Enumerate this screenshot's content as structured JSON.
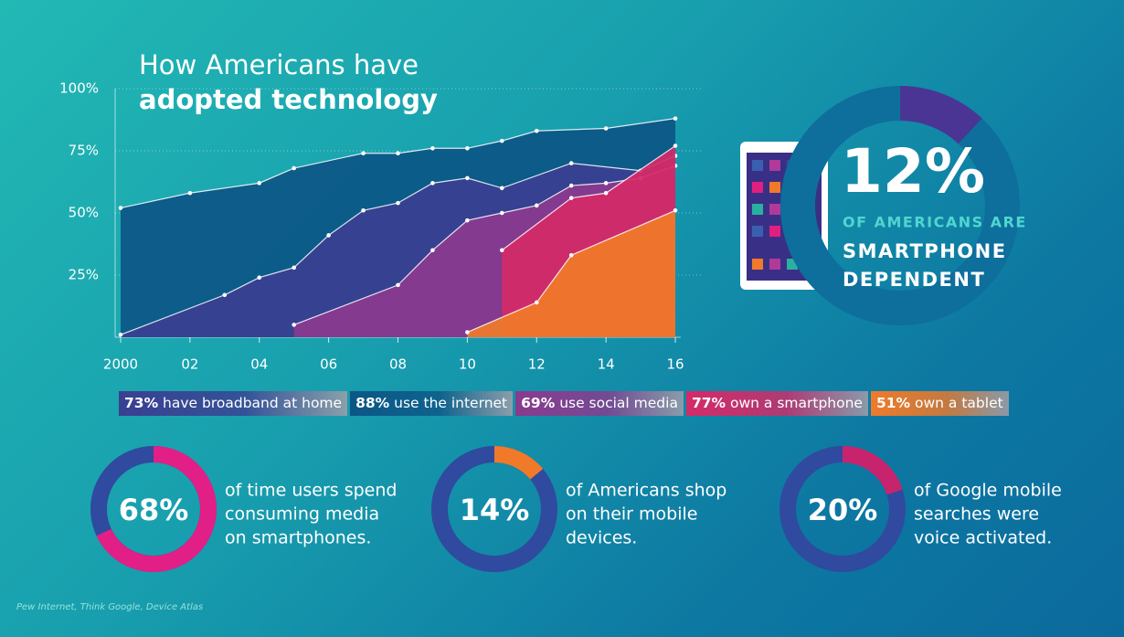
{
  "chart_data": [
    {
      "type": "area",
      "title_lines": [
        "How Americans have",
        "adopted technology"
      ],
      "xlim": [
        2000,
        2016
      ],
      "xticks": [
        2000,
        {
          "value": 2002,
          "label": "02"
        },
        {
          "value": 2004,
          "label": "04"
        },
        {
          "value": 2006,
          "label": "06"
        },
        {
          "value": 2008,
          "label": "08"
        },
        {
          "value": 2010,
          "label": "10"
        },
        {
          "value": 2012,
          "label": "12"
        },
        {
          "value": 2014,
          "label": "14"
        },
        {
          "value": 2016,
          "label": "16"
        }
      ],
      "ylim": [
        0,
        100
      ],
      "yticks": [
        {
          "value": 25,
          "label": "25%"
        },
        {
          "value": 50,
          "label": "50%"
        },
        {
          "value": 75,
          "label": "75%"
        },
        {
          "value": 100,
          "label": "100%"
        }
      ],
      "grid": true,
      "series": [
        {
          "name": "use the internet",
          "legend_value": 88,
          "legend_value_label": "88%",
          "color": "#0c5686",
          "x": [
            2000,
            2002,
            2004,
            2005,
            2007,
            2008,
            2009,
            2010,
            2011,
            2012,
            2014,
            2016
          ],
          "values": [
            52,
            58,
            62,
            68,
            74,
            74,
            76,
            76,
            79,
            83,
            84,
            88
          ]
        },
        {
          "name": "have broadband at home",
          "legend_value": 73,
          "legend_value_label": "73%",
          "color": "#3a3f91",
          "x": [
            2000,
            2003,
            2004,
            2005,
            2006,
            2007,
            2008,
            2009,
            2010,
            2011,
            2013,
            2015,
            2016
          ],
          "values": [
            1,
            17,
            24,
            28,
            41,
            51,
            54,
            62,
            64,
            60,
            70,
            67,
            73
          ]
        },
        {
          "name": "use social media",
          "legend_value": 69,
          "legend_value_label": "69%",
          "color": "#8a3a8e",
          "x": [
            2005,
            2008,
            2009,
            2010,
            2011,
            2012,
            2013,
            2014,
            2015,
            2016
          ],
          "values": [
            5,
            21,
            35,
            47,
            50,
            53,
            61,
            62,
            64,
            69
          ]
        },
        {
          "name": "own a smartphone",
          "legend_value": 77,
          "legend_value_label": "77%",
          "color": "#d42a68",
          "x": [
            2011,
            2013,
            2014,
            2016
          ],
          "values": [
            35,
            56,
            58,
            77
          ]
        },
        {
          "name": "own a tablet",
          "legend_value": 51,
          "legend_value_label": "51%",
          "color": "#f07a2a",
          "x": [
            2010,
            2012,
            2013,
            2016
          ],
          "values": [
            2,
            14,
            33,
            51
          ]
        }
      ]
    },
    {
      "type": "donut",
      "values": [
        12
      ],
      "value_labels": [
        "12%"
      ],
      "color": "#4a3595",
      "caption_lines": [
        "OF AMERICANS ARE",
        "SMARTPHONE",
        "DEPENDENT"
      ]
    },
    {
      "type": "donut",
      "values": [
        68
      ],
      "value_labels": [
        "68%"
      ],
      "color": "#e21f86",
      "caption_lines": [
        "of time users spend",
        "consuming media",
        "on smartphones."
      ]
    },
    {
      "type": "donut",
      "values": [
        14
      ],
      "value_labels": [
        "14%"
      ],
      "color": "#f07a2a",
      "caption_lines": [
        "of Americans shop",
        "on their mobile",
        "devices."
      ]
    },
    {
      "type": "donut",
      "values": [
        20
      ],
      "value_labels": [
        "20%"
      ],
      "color": "#c8246e",
      "caption_lines": [
        "of Google mobile",
        "searches were",
        "voice activated."
      ]
    }
  ],
  "source": "Pew Internet, Think Google, Device Atlas"
}
